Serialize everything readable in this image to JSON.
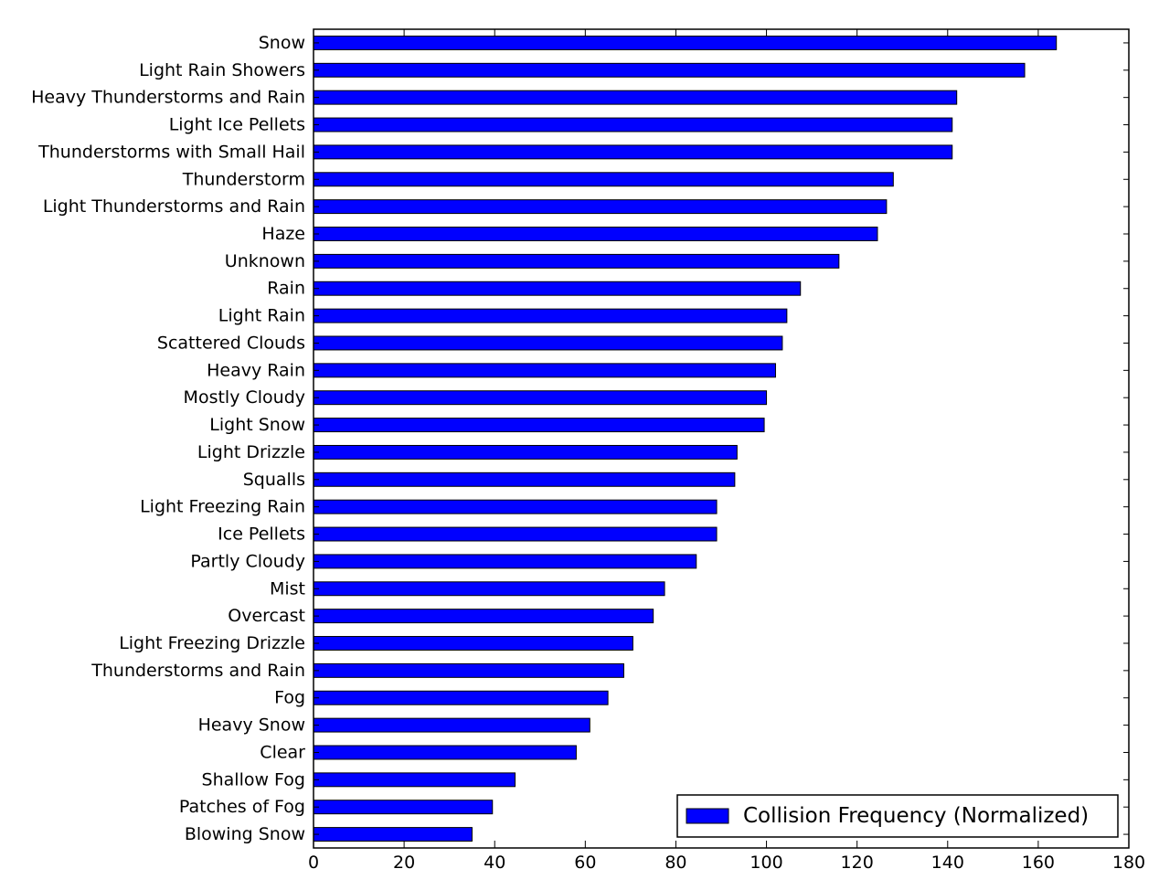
{
  "chart_data": {
    "type": "bar",
    "orientation": "horizontal",
    "categories": [
      "Snow",
      "Light Rain Showers",
      "Heavy Thunderstorms and Rain",
      "Light Ice Pellets",
      "Thunderstorms with Small Hail",
      "Thunderstorm",
      "Light Thunderstorms and Rain",
      "Haze",
      "Unknown",
      "Rain",
      "Light Rain",
      "Scattered Clouds",
      "Heavy Rain",
      "Mostly Cloudy",
      "Light Snow",
      "Light Drizzle",
      "Squalls",
      "Light Freezing Rain",
      "Ice Pellets",
      "Partly Cloudy",
      "Mist",
      "Overcast",
      "Light Freezing Drizzle",
      "Thunderstorms and Rain",
      "Fog",
      "Heavy Snow",
      "Clear",
      "Shallow Fog",
      "Patches of Fog",
      "Blowing Snow"
    ],
    "series": [
      {
        "name": "Collision Frequency (Normalized)",
        "values": [
          164,
          157,
          142,
          141,
          141,
          128,
          126.5,
          124.5,
          116,
          107.5,
          104.5,
          103.5,
          102,
          100,
          99.5,
          93.5,
          93,
          89,
          89,
          84.5,
          77.5,
          75,
          70.5,
          68.5,
          65,
          61,
          58,
          44.5,
          39.5,
          35
        ]
      }
    ],
    "xticks": [
      "0",
      "20",
      "40",
      "60",
      "80",
      "100",
      "120",
      "140",
      "160",
      "180"
    ],
    "xlim": [
      0,
      180
    ],
    "bar_color": "#0000ff",
    "legend_position": "lower-right",
    "grid": false,
    "title": "",
    "xlabel": "",
    "ylabel": ""
  }
}
